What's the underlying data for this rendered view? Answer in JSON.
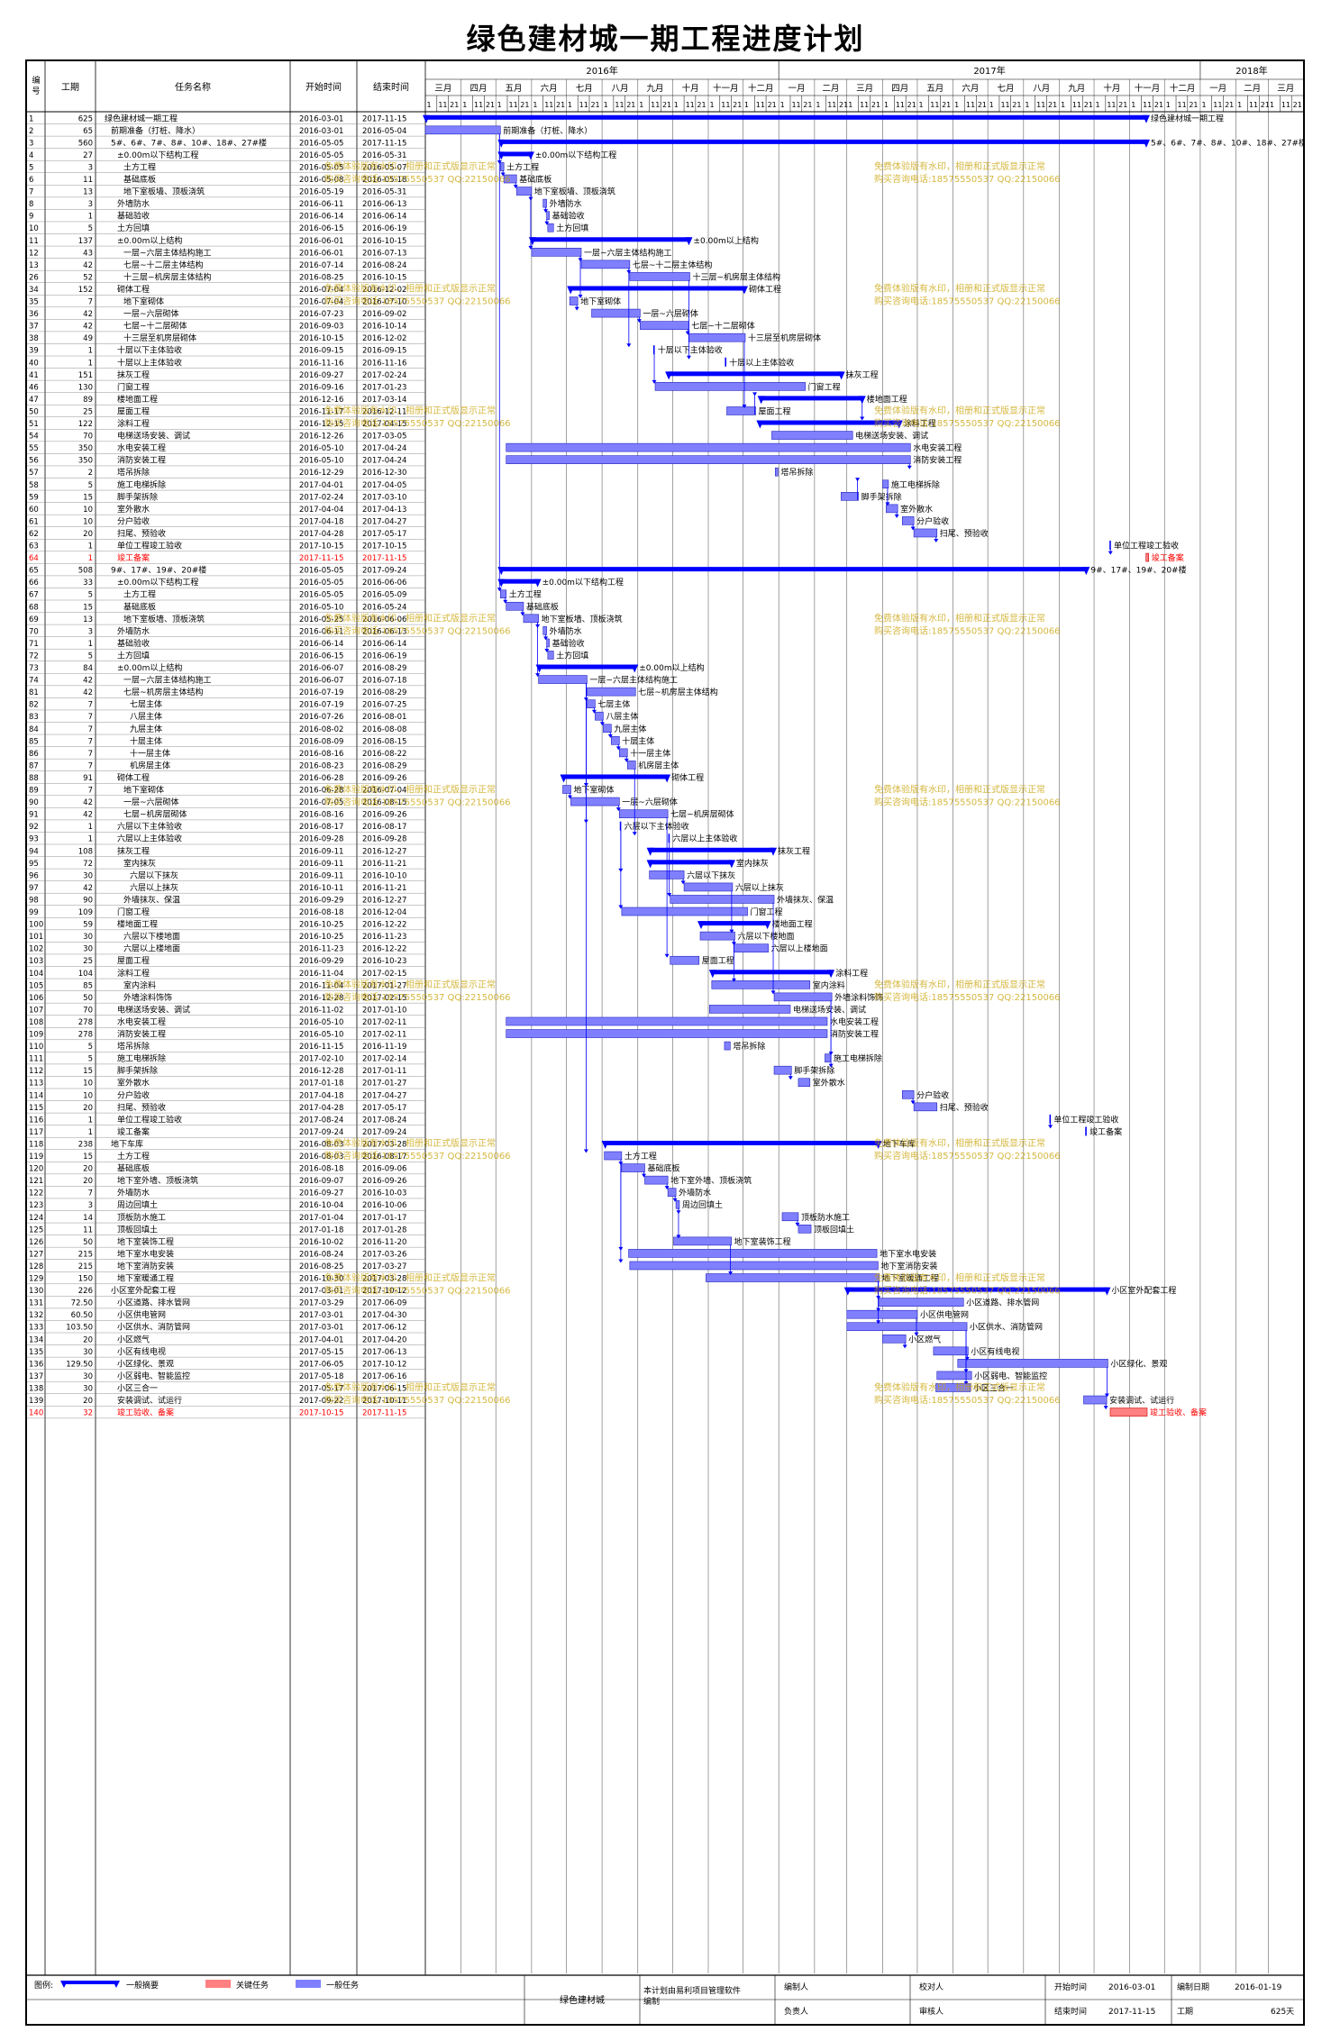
{
  "title": "绿色建材城一期工程进度计划",
  "table_headers": {
    "id": "编号",
    "duration": "工期",
    "name": "任务名称",
    "start": "开始时间",
    "end": "结束时间"
  },
  "years": [
    {
      "label": "2016年",
      "from": "2016-03-01",
      "to": "2017-01-01"
    },
    {
      "label": "2017年",
      "from": "2017-01-01",
      "to": "2018-01-01"
    },
    {
      "label": "2018年",
      "from": "2018-01-01",
      "to": "2018-04-01"
    }
  ],
  "months": [
    "三月",
    "四月",
    "五月",
    "六月",
    "七月",
    "八月",
    "九月",
    "十月",
    "十一月",
    "十二月",
    "一月",
    "二月",
    "三月",
    "四月",
    "五月",
    "六月",
    "七月",
    "八月",
    "九月",
    "十月",
    "十一月",
    "十二月",
    "一月",
    "二月",
    "三月"
  ],
  "month_subticks": [
    "1",
    "11",
    "21"
  ],
  "legend": {
    "label": "图例:",
    "summary": "一般摘要",
    "critical": "关键任务",
    "normal": "一般任务"
  },
  "watermark": {
    "line1": "免费体验版有水印，相册和正式版显示正常",
    "line2": "购买咨询电话:18575550537 QQ:22150066"
  },
  "footer": {
    "project": "绿色建材城",
    "software": "本计划由易利项目管理软件编制",
    "prepared_by": "编制人",
    "checked_by": "校对人",
    "responsible": "负责人",
    "approved_by": "审核人",
    "start_label": "开始时间",
    "start_value": "2016-03-01",
    "date_label": "编制日期",
    "date_value": "2016-01-19",
    "end_label": "结束时间",
    "end_value": "2017-11-15",
    "duration_label": "工期",
    "duration_value": "625天"
  },
  "colors": {
    "summary": "#0000ff",
    "normal_fill": "#8080ff",
    "critical_fill": "#ff8080",
    "critical_text": "#ff0000",
    "link": "#0000ff",
    "watermark": "#c8a000"
  },
  "chart_data": {
    "type": "gantt",
    "date_range": [
      "2016-03-01",
      "2018-04-01"
    ],
    "tasks": [
      [
        "1",
        "625",
        "绿色建材城一期工程",
        "2016-03-01",
        "2017-11-15",
        "s",
        0
      ],
      [
        "2",
        "65",
        "前期准备（打桩、降水）",
        "2016-03-01",
        "2016-05-04",
        "n",
        1
      ],
      [
        "3",
        "560",
        "5#、6#、7#、8#、10#、18#、27#楼",
        "2016-05-05",
        "2017-11-15",
        "s",
        1
      ],
      [
        "4",
        "27",
        "±0.00m以下结构工程",
        "2016-05-05",
        "2016-05-31",
        "s",
        2
      ],
      [
        "5",
        "3",
        "土方工程",
        "2016-05-05",
        "2016-05-07",
        "n",
        3
      ],
      [
        "6",
        "11",
        "基础底板",
        "2016-05-08",
        "2016-05-18",
        "n",
        3
      ],
      [
        "7",
        "13",
        "地下室板墙、顶板浇筑",
        "2016-05-19",
        "2016-05-31",
        "n",
        3
      ],
      [
        "8",
        "3",
        "外墙防水",
        "2016-06-11",
        "2016-06-13",
        "n",
        2
      ],
      [
        "9",
        "1",
        "基础验收",
        "2016-06-14",
        "2016-06-14",
        "n",
        2
      ],
      [
        "10",
        "5",
        "土方回填",
        "2016-06-15",
        "2016-06-19",
        "n",
        2
      ],
      [
        "11",
        "137",
        "±0.00m以上结构",
        "2016-06-01",
        "2016-10-15",
        "s",
        2
      ],
      [
        "12",
        "43",
        "一层~六层主体结构施工",
        "2016-06-01",
        "2016-07-13",
        "n",
        3
      ],
      [
        "13",
        "42",
        "七层~十二层主体结构",
        "2016-07-14",
        "2016-08-24",
        "n",
        3
      ],
      [
        "26",
        "52",
        "十三层~机房层主体结构",
        "2016-08-25",
        "2016-10-15",
        "n",
        3
      ],
      [
        "34",
        "152",
        "砌体工程",
        "2016-07-04",
        "2016-12-02",
        "s",
        2
      ],
      [
        "35",
        "7",
        "地下室砌体",
        "2016-07-04",
        "2016-07-10",
        "n",
        3
      ],
      [
        "36",
        "42",
        "一层~六层砌体",
        "2016-07-23",
        "2016-09-02",
        "n",
        3
      ],
      [
        "37",
        "42",
        "七层~十二层砌体",
        "2016-09-03",
        "2016-10-14",
        "n",
        3
      ],
      [
        "38",
        "49",
        "十三层至机房层砌体",
        "2016-10-15",
        "2016-12-02",
        "n",
        3
      ],
      [
        "39",
        "1",
        "十层以下主体验收",
        "2016-09-15",
        "2016-09-15",
        "m",
        2
      ],
      [
        "40",
        "1",
        "十层以上主体验收",
        "2016-11-16",
        "2016-11-16",
        "m",
        2
      ],
      [
        "41",
        "151",
        "抹灰工程",
        "2016-09-27",
        "2017-02-24",
        "s",
        2
      ],
      [
        "46",
        "130",
        "门窗工程",
        "2016-09-16",
        "2017-01-23",
        "n",
        2
      ],
      [
        "47",
        "89",
        "楼地面工程",
        "2016-12-16",
        "2017-03-14",
        "s",
        2
      ],
      [
        "50",
        "25",
        "屋面工程",
        "2016-11-17",
        "2016-12-11",
        "n",
        2
      ],
      [
        "51",
        "122",
        "涂料工程",
        "2016-12-15",
        "2017-04-15",
        "s",
        2
      ],
      [
        "54",
        "70",
        "电梯送场安装、调试",
        "2016-12-26",
        "2017-03-05",
        "n",
        2
      ],
      [
        "55",
        "350",
        "水电安装工程",
        "2016-05-10",
        "2017-04-24",
        "n",
        2
      ],
      [
        "56",
        "350",
        "消防安装工程",
        "2016-05-10",
        "2017-04-24",
        "n",
        2
      ],
      [
        "57",
        "2",
        "塔吊拆除",
        "2016-12-29",
        "2016-12-30",
        "n",
        2
      ],
      [
        "58",
        "5",
        "施工电梯拆除",
        "2017-04-01",
        "2017-04-05",
        "n",
        2
      ],
      [
        "59",
        "15",
        "脚手架拆除",
        "2017-02-24",
        "2017-03-10",
        "n",
        2
      ],
      [
        "60",
        "10",
        "室外散水",
        "2017-04-04",
        "2017-04-13",
        "n",
        2
      ],
      [
        "61",
        "10",
        "分户验收",
        "2017-04-18",
        "2017-04-27",
        "n",
        2
      ],
      [
        "62",
        "20",
        "扫尾、预验收",
        "2017-04-28",
        "2017-05-17",
        "n",
        2
      ],
      [
        "63",
        "1",
        "单位工程竣工验收",
        "2017-10-15",
        "2017-10-15",
        "m",
        2
      ],
      [
        "64",
        "1",
        "竣工备案",
        "2017-11-15",
        "2017-11-15",
        "c",
        2
      ],
      [
        "65",
        "508",
        "9#、17#、19#、20#楼",
        "2016-05-05",
        "2017-09-24",
        "s",
        1
      ],
      [
        "66",
        "33",
        "±0.00m以下结构工程",
        "2016-05-05",
        "2016-06-06",
        "s",
        2
      ],
      [
        "67",
        "5",
        "土方工程",
        "2016-05-05",
        "2016-05-09",
        "n",
        3
      ],
      [
        "68",
        "15",
        "基础底板",
        "2016-05-10",
        "2016-05-24",
        "n",
        3
      ],
      [
        "69",
        "13",
        "地下室板墙、顶板浇筑",
        "2016-05-25",
        "2016-06-06",
        "n",
        3
      ],
      [
        "70",
        "3",
        "外墙防水",
        "2016-06-11",
        "2016-06-13",
        "n",
        2
      ],
      [
        "71",
        "1",
        "基础验收",
        "2016-06-14",
        "2016-06-14",
        "n",
        2
      ],
      [
        "72",
        "5",
        "土方回填",
        "2016-06-15",
        "2016-06-19",
        "n",
        2
      ],
      [
        "73",
        "84",
        "±0.00m以上结构",
        "2016-06-07",
        "2016-08-29",
        "s",
        2
      ],
      [
        "74",
        "42",
        "一层~六层主体结构施工",
        "2016-06-07",
        "2016-07-18",
        "n",
        3
      ],
      [
        "81",
        "42",
        "七层~机房层主体结构",
        "2016-07-19",
        "2016-08-29",
        "n",
        3
      ],
      [
        "82",
        "7",
        "七层主体",
        "2016-07-19",
        "2016-07-25",
        "n",
        4
      ],
      [
        "83",
        "7",
        "八层主体",
        "2016-07-26",
        "2016-08-01",
        "n",
        4
      ],
      [
        "84",
        "7",
        "九层主体",
        "2016-08-02",
        "2016-08-08",
        "n",
        4
      ],
      [
        "85",
        "7",
        "十层主体",
        "2016-08-09",
        "2016-08-15",
        "n",
        4
      ],
      [
        "86",
        "7",
        "十一层主体",
        "2016-08-16",
        "2016-08-22",
        "n",
        4
      ],
      [
        "87",
        "7",
        "机房层主体",
        "2016-08-23",
        "2016-08-29",
        "n",
        4
      ],
      [
        "88",
        "91",
        "砌体工程",
        "2016-06-28",
        "2016-09-26",
        "s",
        2
      ],
      [
        "89",
        "7",
        "地下室砌体",
        "2016-06-28",
        "2016-07-04",
        "n",
        3
      ],
      [
        "90",
        "42",
        "一层~六层砌体",
        "2016-07-05",
        "2016-08-15",
        "n",
        3
      ],
      [
        "91",
        "42",
        "七层~机房层砌体",
        "2016-08-16",
        "2016-09-26",
        "n",
        3
      ],
      [
        "92",
        "1",
        "六层以下主体验收",
        "2016-08-17",
        "2016-08-17",
        "m",
        2
      ],
      [
        "93",
        "1",
        "六层以上主体验收",
        "2016-09-28",
        "2016-09-28",
        "m",
        2
      ],
      [
        "94",
        "108",
        "抹灰工程",
        "2016-09-11",
        "2016-12-27",
        "s",
        2
      ],
      [
        "95",
        "72",
        "室内抹灰",
        "2016-09-11",
        "2016-11-21",
        "s",
        3
      ],
      [
        "96",
        "30",
        "六层以下抹灰",
        "2016-09-11",
        "2016-10-10",
        "n",
        4
      ],
      [
        "97",
        "42",
        "六层以上抹灰",
        "2016-10-11",
        "2016-11-21",
        "n",
        4
      ],
      [
        "98",
        "90",
        "外墙抹灰、保温",
        "2016-09-29",
        "2016-12-27",
        "n",
        3
      ],
      [
        "99",
        "109",
        "门窗工程",
        "2016-08-18",
        "2016-12-04",
        "n",
        2
      ],
      [
        "100",
        "59",
        "楼地面工程",
        "2016-10-25",
        "2016-12-22",
        "s",
        2
      ],
      [
        "101",
        "30",
        "六层以下楼地面",
        "2016-10-25",
        "2016-11-23",
        "n",
        3
      ],
      [
        "102",
        "30",
        "六层以上楼地面",
        "2016-11-23",
        "2016-12-22",
        "n",
        3
      ],
      [
        "103",
        "25",
        "屋面工程",
        "2016-09-29",
        "2016-10-23",
        "n",
        2
      ],
      [
        "104",
        "104",
        "涂料工程",
        "2016-11-04",
        "2017-02-15",
        "s",
        2
      ],
      [
        "105",
        "85",
        "室内涂料",
        "2016-11-04",
        "2017-01-27",
        "n",
        3
      ],
      [
        "106",
        "50",
        "外墙涂料饰饰",
        "2016-12-28",
        "2017-02-15",
        "n",
        3
      ],
      [
        "107",
        "70",
        "电梯送场安装、调试",
        "2016-11-02",
        "2017-01-10",
        "n",
        2
      ],
      [
        "108",
        "278",
        "水电安装工程",
        "2016-05-10",
        "2017-02-11",
        "n",
        2
      ],
      [
        "109",
        "278",
        "消防安装工程",
        "2016-05-10",
        "2017-02-11",
        "n",
        2
      ],
      [
        "110",
        "5",
        "塔吊拆除",
        "2016-11-15",
        "2016-11-19",
        "n",
        2
      ],
      [
        "111",
        "5",
        "施工电梯拆除",
        "2017-02-10",
        "2017-02-14",
        "n",
        2
      ],
      [
        "112",
        "15",
        "脚手架拆除",
        "2016-12-28",
        "2017-01-11",
        "n",
        2
      ],
      [
        "113",
        "10",
        "室外散水",
        "2017-01-18",
        "2017-01-27",
        "n",
        2
      ],
      [
        "114",
        "10",
        "分户验收",
        "2017-04-18",
        "2017-04-27",
        "n",
        2
      ],
      [
        "115",
        "20",
        "扫尾、预验收",
        "2017-04-28",
        "2017-05-17",
        "n",
        2
      ],
      [
        "116",
        "1",
        "单位工程竣工验收",
        "2017-08-24",
        "2017-08-24",
        "m",
        2
      ],
      [
        "117",
        "1",
        "竣工备案",
        "2017-09-24",
        "2017-09-24",
        "m",
        2
      ],
      [
        "118",
        "238",
        "地下车库",
        "2016-08-03",
        "2017-03-28",
        "s",
        1
      ],
      [
        "119",
        "15",
        "土方工程",
        "2016-08-03",
        "2016-08-17",
        "n",
        2
      ],
      [
        "120",
        "20",
        "基础底板",
        "2016-08-18",
        "2016-09-06",
        "n",
        2
      ],
      [
        "121",
        "20",
        "地下室外墙、顶板浇筑",
        "2016-09-07",
        "2016-09-26",
        "n",
        2
      ],
      [
        "122",
        "7",
        "外墙防水",
        "2016-09-27",
        "2016-10-03",
        "n",
        2
      ],
      [
        "123",
        "3",
        "周边回填土",
        "2016-10-04",
        "2016-10-06",
        "n",
        2
      ],
      [
        "124",
        "14",
        "顶板防水施工",
        "2017-01-04",
        "2017-01-17",
        "n",
        2
      ],
      [
        "125",
        "11",
        "顶板回填土",
        "2017-01-18",
        "2017-01-28",
        "n",
        2
      ],
      [
        "126",
        "50",
        "地下室装饰工程",
        "2016-10-02",
        "2016-11-20",
        "n",
        2
      ],
      [
        "127",
        "215",
        "地下室水电安装",
        "2016-08-24",
        "2017-03-26",
        "n",
        2
      ],
      [
        "128",
        "215",
        "地下室消防安装",
        "2016-08-25",
        "2017-03-27",
        "n",
        2
      ],
      [
        "129",
        "150",
        "地下室暖通工程",
        "2016-10-30",
        "2017-03-28",
        "n",
        2
      ],
      [
        "130",
        "226",
        "小区室外配套工程",
        "2017-03-01",
        "2017-10-12",
        "s",
        1
      ],
      [
        "131",
        "72.50",
        "小区道路、排水管网",
        "2017-03-29",
        "2017-06-09",
        "n",
        2
      ],
      [
        "132",
        "60.50",
        "小区供电管网",
        "2017-03-01",
        "2017-04-30",
        "n",
        2
      ],
      [
        "133",
        "103.50",
        "小区供水、消防管网",
        "2017-03-01",
        "2017-06-12",
        "n",
        2
      ],
      [
        "134",
        "20",
        "小区燃气",
        "2017-04-01",
        "2017-04-20",
        "n",
        2
      ],
      [
        "135",
        "30",
        "小区有线电视",
        "2017-05-15",
        "2017-06-13",
        "n",
        2
      ],
      [
        "136",
        "129.50",
        "小区绿化、景观",
        "2017-06-05",
        "2017-10-12",
        "n",
        2
      ],
      [
        "137",
        "30",
        "小区弱电、智能监控",
        "2017-05-18",
        "2017-06-16",
        "n",
        2
      ],
      [
        "138",
        "30",
        "小区三合一",
        "2017-05-17",
        "2017-06-15",
        "n",
        2
      ],
      [
        "139",
        "20",
        "安装调试、试运行",
        "2017-09-22",
        "2017-10-11",
        "n",
        2
      ],
      [
        "140",
        "32",
        "竣工验收、备案",
        "2017-10-15",
        "2017-11-15",
        "c",
        2
      ]
    ]
  }
}
